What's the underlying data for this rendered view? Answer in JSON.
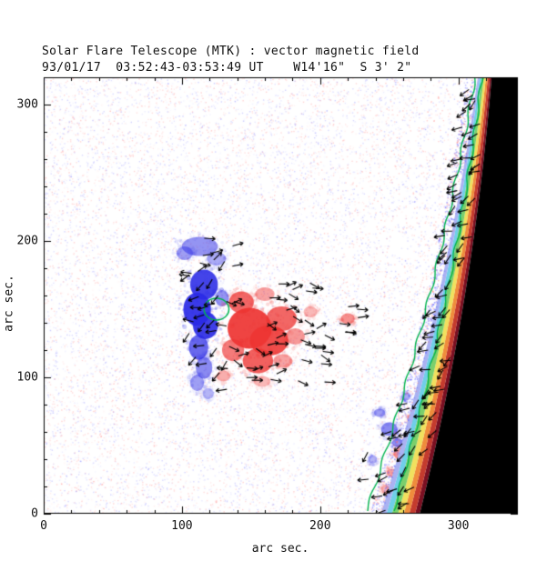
{
  "chart_data": {
    "type": "heatmap",
    "title": "Solar Flare Telescope (MTK) : vector magnetic field",
    "subtitle": "93/01/17  03:52:43-03:53:49 UT    W14'16\"  S 3' 2\"",
    "xlabel": "arc sec.",
    "ylabel": "arc sec.",
    "xlim": [
      0,
      343
    ],
    "ylim": [
      0,
      320
    ],
    "xticks": [
      0,
      100,
      200,
      300
    ],
    "yticks": [
      0,
      100,
      200,
      300
    ],
    "grid": false,
    "legend": false,
    "colors": {
      "negative": "#2a2ae6",
      "positive": "#ee3432",
      "contour": "#00b44e",
      "off_limb": "#000000",
      "vectors": "#000000",
      "background": "#ffffff"
    },
    "negative_polarity_blobs": [
      [
        113,
        196,
        13,
        7,
        0.5
      ],
      [
        102,
        191,
        6,
        5,
        0.45
      ],
      [
        125,
        187,
        7,
        5,
        0.4
      ],
      [
        116,
        168,
        10,
        11,
        0.88
      ],
      [
        111,
        150,
        10,
        12,
        0.92
      ],
      [
        117,
        138,
        9,
        10,
        0.9
      ],
      [
        112,
        122,
        7,
        9,
        0.7
      ],
      [
        116,
        107,
        6,
        8,
        0.55
      ],
      [
        111,
        96,
        5,
        6,
        0.45
      ],
      [
        119,
        88,
        4,
        4,
        0.35
      ],
      [
        129,
        158,
        5,
        6,
        0.5
      ],
      [
        299,
        184,
        4,
        7,
        0.45
      ],
      [
        303,
        208,
        3,
        5,
        0.35
      ],
      [
        250,
        62,
        6,
        5,
        0.55
      ],
      [
        243,
        74,
        4,
        3,
        0.45
      ],
      [
        256,
        52,
        4,
        3,
        0.5
      ],
      [
        262,
        86,
        3,
        3,
        0.4
      ],
      [
        238,
        40,
        3,
        3,
        0.35
      ]
    ],
    "positive_polarity_blobs": [
      [
        149,
        136,
        16,
        15,
        0.92
      ],
      [
        163,
        127,
        14,
        11,
        0.88
      ],
      [
        172,
        143,
        11,
        9,
        0.75
      ],
      [
        155,
        112,
        11,
        9,
        0.78
      ],
      [
        143,
        155,
        9,
        8,
        0.75
      ],
      [
        137,
        120,
        8,
        8,
        0.65
      ],
      [
        182,
        130,
        7,
        6,
        0.5
      ],
      [
        173,
        112,
        7,
        5,
        0.45
      ],
      [
        160,
        161,
        7,
        5,
        0.45
      ],
      [
        193,
        148,
        5,
        4,
        0.35
      ],
      [
        220,
        143,
        5,
        4,
        0.55
      ],
      [
        158,
        97,
        6,
        4,
        0.35
      ],
      [
        130,
        101,
        5,
        4,
        0.4
      ],
      [
        258,
        44,
        5,
        4,
        0.5
      ],
      [
        252,
        30,
        4,
        3,
        0.45
      ],
      [
        266,
        70,
        3,
        3,
        0.35
      ],
      [
        247,
        18,
        3,
        3,
        0.35
      ]
    ],
    "flare_contour": {
      "cx": 125,
      "cy": 150,
      "rx": 9,
      "ry": 8
    },
    "limb": {
      "x_top": 324,
      "x_bottom": 272,
      "strips": [
        {
          "w": 1.2,
          "color": "#7a1022"
        },
        {
          "w": 1.5,
          "color": "#c43b2e"
        },
        {
          "w": 1.4,
          "color": "#ef8c3c"
        },
        {
          "w": 1.5,
          "color": "#f1e05e"
        },
        {
          "w": 1.6,
          "color": "#7bcf6c"
        },
        {
          "w": 1.4,
          "color": "#6fcfe8"
        },
        {
          "w": 1.4,
          "color": "#aab2f2"
        }
      ]
    },
    "vector_field": {
      "color": "#000000",
      "length_arcsec": 8,
      "regions": [
        {
          "name": "blue-region",
          "x": [
            104,
            134
          ],
          "y": [
            88,
            186
          ],
          "count": 26,
          "angle_mean": 200,
          "angle_spread": 80
        },
        {
          "name": "red-region",
          "x": [
            132,
            204
          ],
          "y": [
            95,
            170
          ],
          "count": 46,
          "angle_mean": 355,
          "angle_spread": 70
        },
        {
          "name": "hook-top",
          "x": [
            104,
            142
          ],
          "y": [
            176,
            204
          ],
          "count": 8,
          "angle_mean": 15,
          "angle_spread": 60
        },
        {
          "name": "detached-red",
          "x": [
            210,
            232
          ],
          "y": [
            132,
            152
          ],
          "count": 6,
          "angle_mean": 5,
          "angle_spread": 40
        },
        {
          "name": "southeast-patches",
          "x": [
            233,
            272
          ],
          "y": [
            14,
            92
          ],
          "count": 14,
          "angle_mean": 215,
          "angle_spread": 60
        },
        {
          "name": "limb-band",
          "along_limb": true,
          "count": 85,
          "angle_mean": 210,
          "angle_spread": 60
        }
      ]
    }
  }
}
